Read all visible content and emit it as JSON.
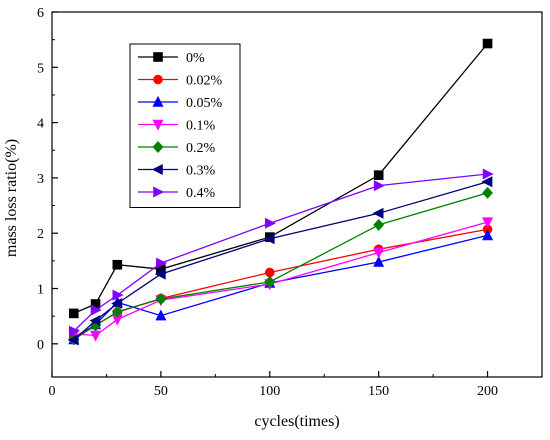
{
  "chart_data": {
    "type": "line",
    "title": "",
    "xlabel": "cycles(times)",
    "ylabel": "mass loss ratio(%)",
    "xlim": [
      0,
      225
    ],
    "ylim": [
      -0.6,
      6
    ],
    "xticks": [
      0,
      50,
      100,
      150,
      200
    ],
    "yticks": [
      0,
      1,
      2,
      3,
      4,
      5,
      6
    ],
    "grid": false,
    "legend_position": "top-left",
    "x": [
      10,
      20,
      30,
      50,
      100,
      150,
      200
    ],
    "series": [
      {
        "name": "0%",
        "color": "#000000",
        "marker": "square",
        "values": [
          0.55,
          0.72,
          1.43,
          1.35,
          1.93,
          3.05,
          5.43
        ]
      },
      {
        "name": "0.02%",
        "color": "#ff0000",
        "marker": "circle",
        "values": [
          0.12,
          0.34,
          0.57,
          0.82,
          1.29,
          1.71,
          2.07
        ]
      },
      {
        "name": "0.05%",
        "color": "#0000ff",
        "marker": "triangle-up",
        "values": [
          0.08,
          0.35,
          0.75,
          0.51,
          1.1,
          1.48,
          1.96
        ]
      },
      {
        "name": "0.1%",
        "color": "#ff00ff",
        "marker": "triangle-down",
        "values": [
          0.18,
          0.15,
          0.44,
          0.79,
          1.08,
          1.65,
          2.2
        ]
      },
      {
        "name": "0.2%",
        "color": "#008000",
        "marker": "diamond",
        "values": [
          0.08,
          0.33,
          0.58,
          0.81,
          1.12,
          2.15,
          2.73
        ]
      },
      {
        "name": "0.3%",
        "color": "#000080",
        "marker": "triangle-left",
        "values": [
          0.07,
          0.42,
          0.73,
          1.26,
          1.9,
          2.36,
          2.93
        ]
      },
      {
        "name": "0.4%",
        "color": "#8000ff",
        "marker": "triangle-right",
        "values": [
          0.23,
          0.61,
          0.88,
          1.46,
          2.18,
          2.86,
          3.07
        ]
      }
    ]
  }
}
